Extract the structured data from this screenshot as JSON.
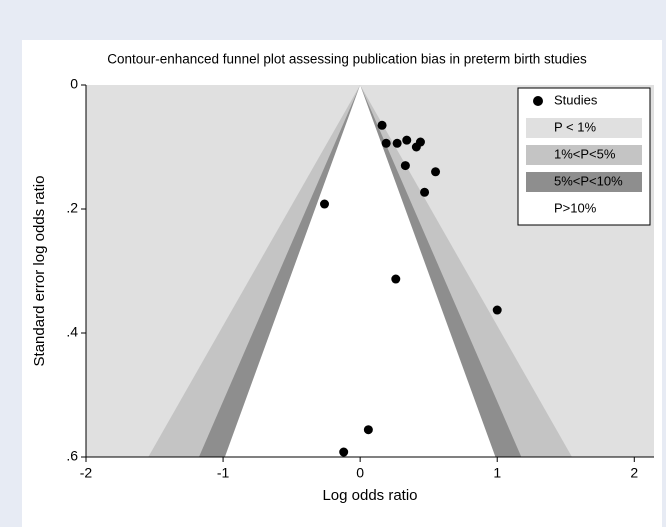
{
  "chart_data": {
    "type": "scatter",
    "title": "Contour-enhanced funnel plot assessing publication bias in preterm birth studies",
    "x_label": "Log odds ratio",
    "y_label": "Standard error log odds ratio",
    "xlim": [
      -2,
      2.1
    ],
    "ylim": [
      0,
      0.6
    ],
    "y_reversed": true,
    "xticks": [
      -2,
      -1,
      0,
      1,
      2
    ],
    "yticks": [
      0,
      {
        "value": 0.2,
        "label": ".2"
      },
      {
        "value": 0.4,
        "label": ".4"
      },
      {
        "value": 0.6,
        "label": ".6"
      }
    ],
    "legend_position": "upper right",
    "legend": [
      "P < 1%",
      "1%<P<5%",
      "5%<P<10%",
      "P>10%"
    ],
    "legend_colors": [
      "#e0e0e0",
      "#c4c4c4",
      "#8e8e8e",
      "#ffffff"
    ],
    "series": [
      {
        "name": "Studies",
        "color": "#000000",
        "x": [
          0.16,
          0.19,
          0.27,
          0.34,
          0.44,
          0.41,
          0.33,
          0.55,
          0.47,
          -0.26,
          0.26,
          1.0,
          0.06,
          -0.12
        ],
        "values": [
          0.065,
          0.094,
          0.094,
          0.089,
          0.092,
          0.1,
          0.13,
          0.14,
          0.173,
          0.192,
          0.313,
          0.363,
          0.556,
          0.592
        ]
      }
    ]
  }
}
